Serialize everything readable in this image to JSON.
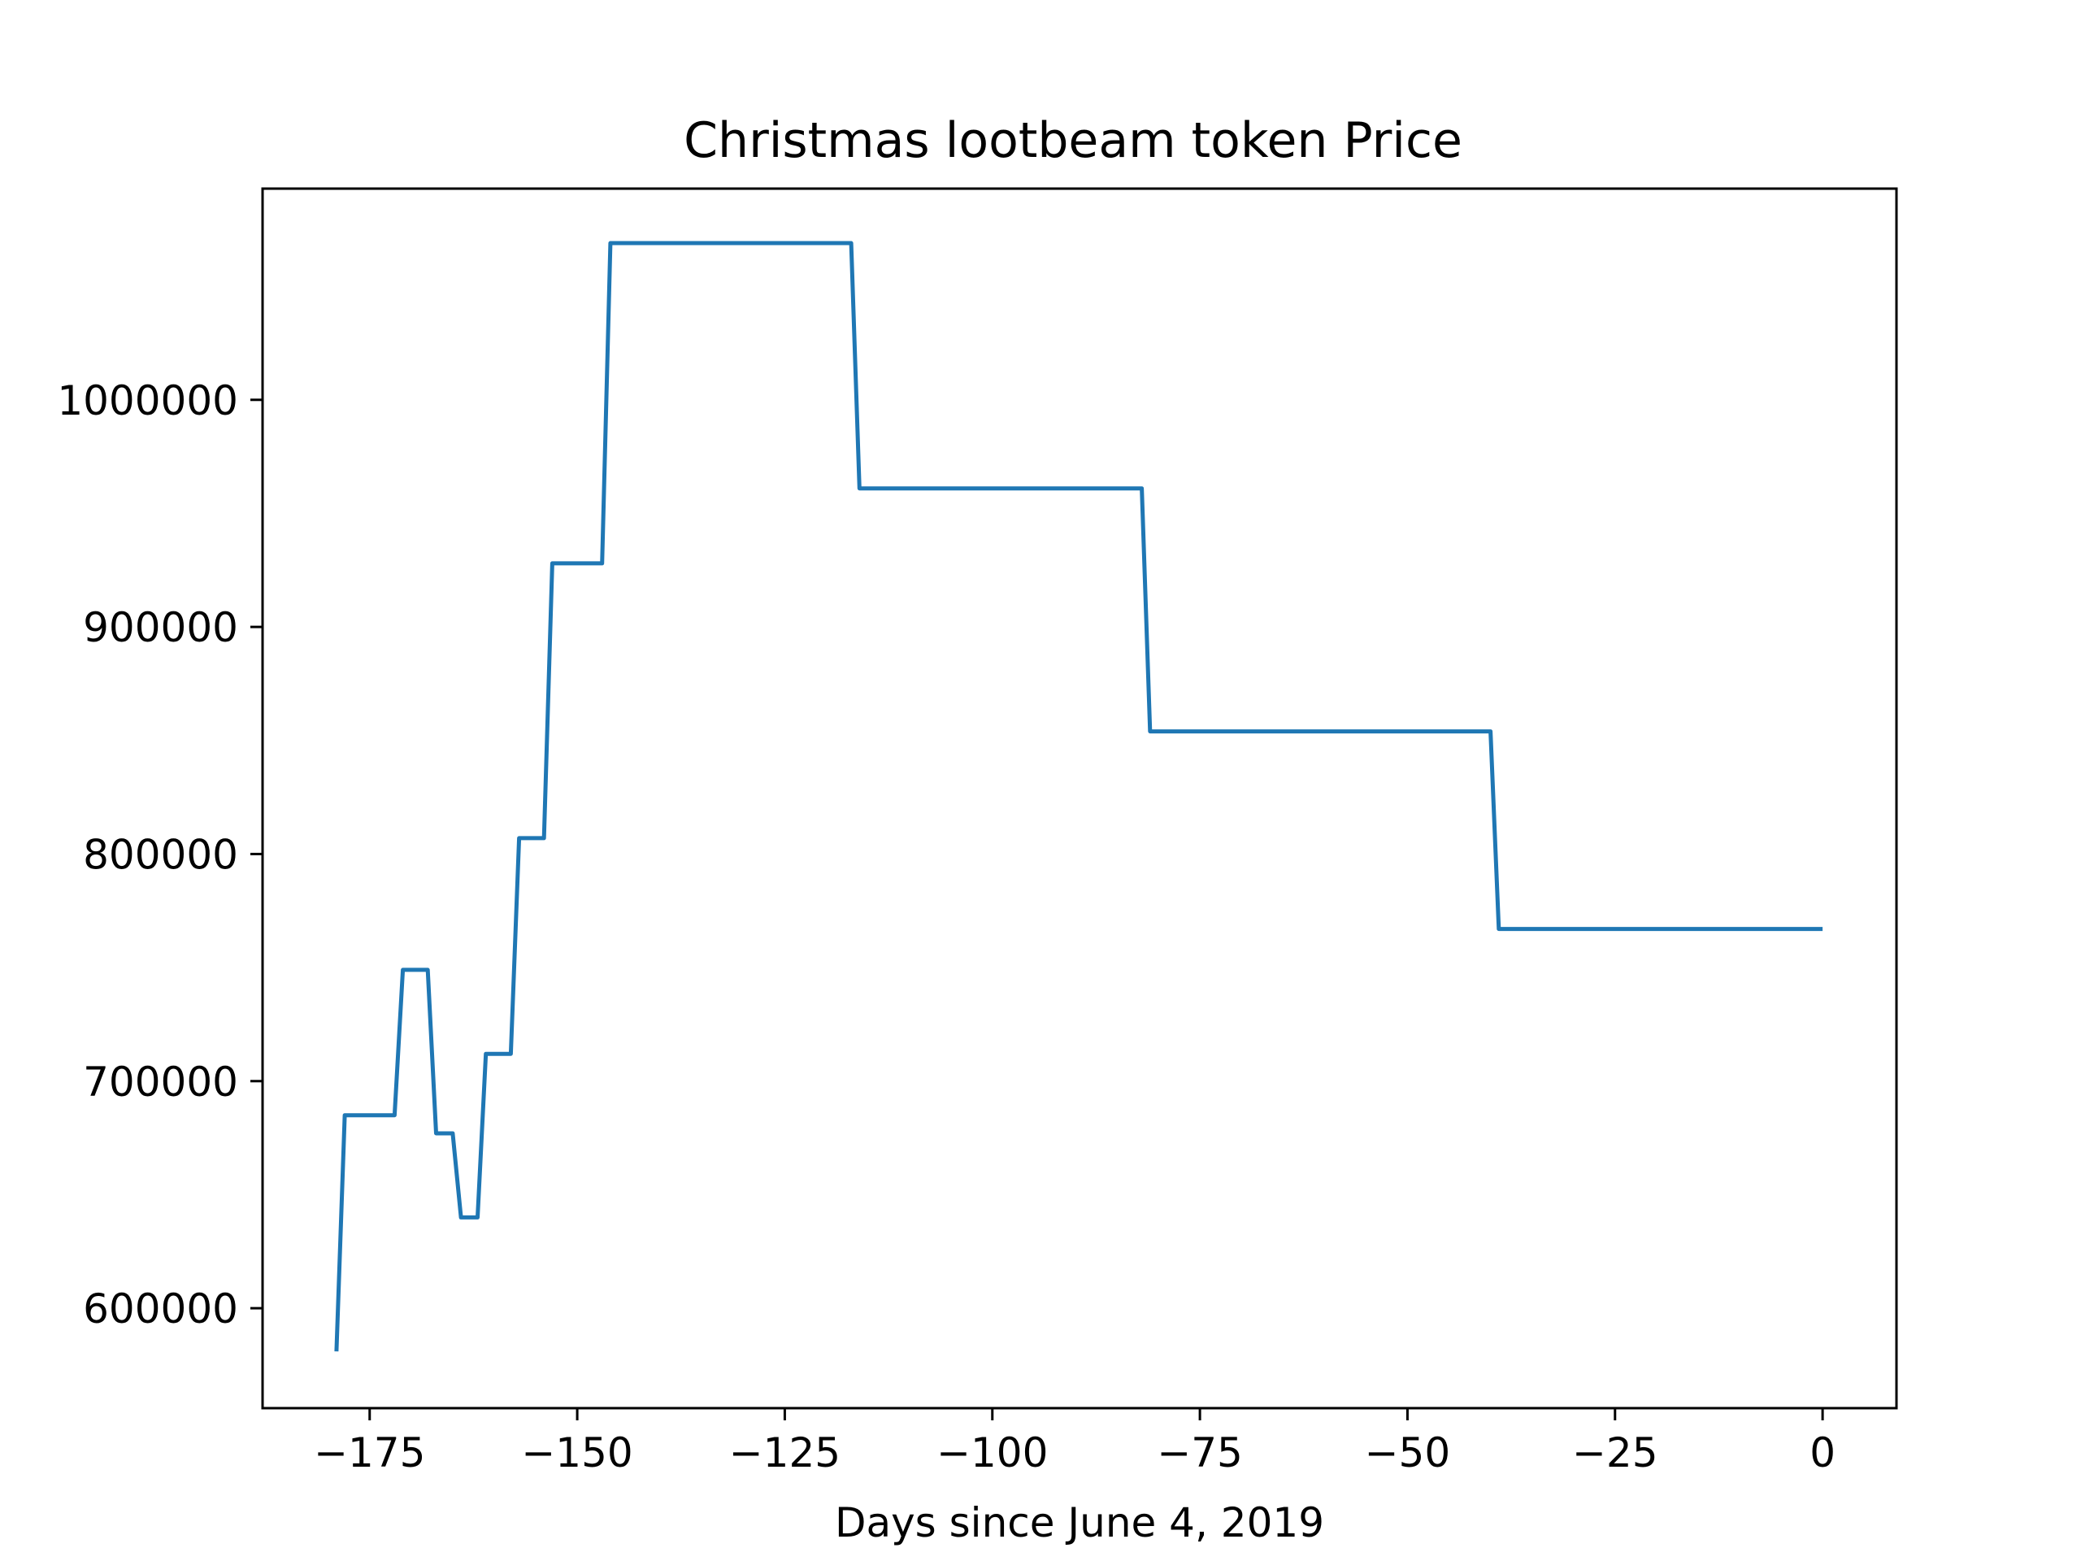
{
  "chart_data": {
    "type": "line",
    "title": "Christmas lootbeam token Price",
    "xlabel": "Days since June 4, 2019",
    "ylabel": "",
    "xlim": [
      -187.9,
      8.9
    ],
    "ylim": [
      556000,
      1093000
    ],
    "x_ticks": [
      -175,
      -150,
      -125,
      -100,
      -75,
      -50,
      -25,
      0
    ],
    "x_tick_labels": [
      "−175",
      "−150",
      "−125",
      "−100",
      "−75",
      "−50",
      "−25",
      "0"
    ],
    "y_ticks": [
      600000,
      700000,
      800000,
      900000,
      1000000
    ],
    "y_tick_labels": [
      "600000",
      "700000",
      "800000",
      "900000",
      "1000000"
    ],
    "grid": false,
    "series": [
      {
        "color": "#1f77b4",
        "x": [
          -179,
          -178,
          -172,
          -171,
          -168,
          -167,
          -165,
          -164,
          -162,
          -161,
          -158,
          -157,
          -154,
          -153,
          -147,
          -146,
          -117,
          -116,
          -82,
          -81,
          -40,
          -39,
          0
        ],
        "y": [
          581000,
          685000,
          685000,
          749000,
          749000,
          677000,
          677000,
          640000,
          640000,
          712000,
          712000,
          807000,
          807000,
          928000,
          928000,
          1069000,
          1069000,
          961000,
          961000,
          854000,
          854000,
          767000,
          767000
        ]
      }
    ]
  }
}
